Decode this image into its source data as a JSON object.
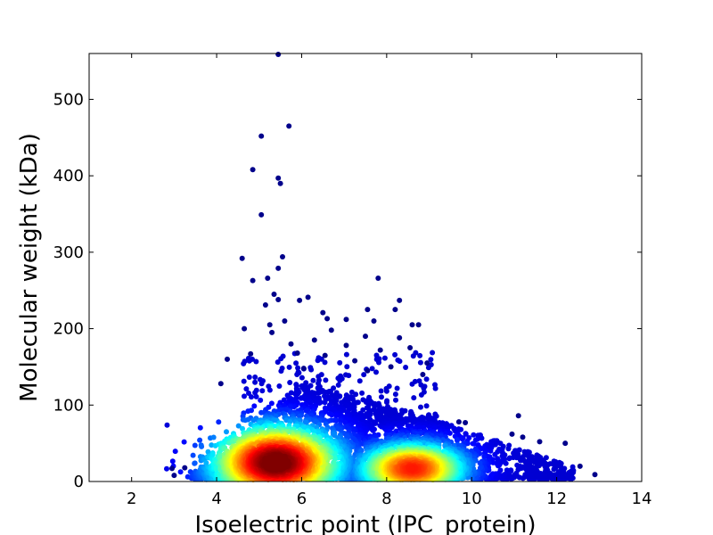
{
  "chart_data": {
    "type": "scatter",
    "title": "",
    "xlabel": "Isoelectric point (IPC_protein)",
    "ylabel": "Molecular weight (kDa)",
    "xlim": [
      1,
      14
    ],
    "ylim": [
      0,
      560
    ],
    "x_ticks": [
      2,
      4,
      6,
      8,
      10,
      12,
      14
    ],
    "y_ticks": [
      0,
      100,
      200,
      300,
      400,
      500
    ],
    "x_tick_labels": [
      "2",
      "4",
      "6",
      "8",
      "10",
      "12",
      "14"
    ],
    "y_tick_labels": [
      "0",
      "100",
      "200",
      "300",
      "400",
      "500"
    ],
    "grid": false,
    "legend": "none",
    "colormap": "jet (point density)",
    "point_color": "#00008b",
    "density_clusters": [
      {
        "x_center": 5.4,
        "y_center": 25,
        "x_spread": 0.6,
        "y_spread": 14,
        "peak_color": "#b30000"
      },
      {
        "x_center": 8.6,
        "y_center": 17,
        "x_spread": 0.5,
        "y_spread": 9,
        "peak_color": "#b30000"
      }
    ],
    "outliers": [
      {
        "x": 5.45,
        "y": 560
      },
      {
        "x": 5.7,
        "y": 465
      },
      {
        "x": 5.05,
        "y": 452
      },
      {
        "x": 4.85,
        "y": 408
      },
      {
        "x": 5.45,
        "y": 397
      },
      {
        "x": 5.5,
        "y": 390
      },
      {
        "x": 5.05,
        "y": 349
      },
      {
        "x": 5.55,
        "y": 294
      },
      {
        "x": 4.6,
        "y": 292
      },
      {
        "x": 5.45,
        "y": 279
      },
      {
        "x": 5.2,
        "y": 266
      },
      {
        "x": 7.8,
        "y": 266
      },
      {
        "x": 4.85,
        "y": 263
      },
      {
        "x": 5.35,
        "y": 245
      },
      {
        "x": 6.15,
        "y": 241
      },
      {
        "x": 5.45,
        "y": 238
      },
      {
        "x": 5.95,
        "y": 237
      },
      {
        "x": 8.3,
        "y": 237
      },
      {
        "x": 5.15,
        "y": 231
      },
      {
        "x": 7.55,
        "y": 225
      },
      {
        "x": 8.2,
        "y": 225
      },
      {
        "x": 6.5,
        "y": 221
      },
      {
        "x": 6.6,
        "y": 213
      },
      {
        "x": 7.05,
        "y": 212
      },
      {
        "x": 5.6,
        "y": 210
      },
      {
        "x": 7.7,
        "y": 210
      },
      {
        "x": 8.6,
        "y": 205
      },
      {
        "x": 8.75,
        "y": 205
      },
      {
        "x": 5.25,
        "y": 205
      },
      {
        "x": 4.65,
        "y": 200
      },
      {
        "x": 6.7,
        "y": 198
      },
      {
        "x": 5.3,
        "y": 195
      },
      {
        "x": 7.5,
        "y": 190
      },
      {
        "x": 8.3,
        "y": 188
      },
      {
        "x": 6.3,
        "y": 185
      },
      {
        "x": 5.75,
        "y": 180
      },
      {
        "x": 7.05,
        "y": 178
      },
      {
        "x": 8.55,
        "y": 175
      },
      {
        "x": 7.85,
        "y": 172
      },
      {
        "x": 5.9,
        "y": 168
      },
      {
        "x": 4.8,
        "y": 167
      },
      {
        "x": 6.55,
        "y": 165
      },
      {
        "x": 4.25,
        "y": 160
      },
      {
        "x": 7.25,
        "y": 158
      },
      {
        "x": 8.95,
        "y": 155
      },
      {
        "x": 8.1,
        "y": 150
      },
      {
        "x": 6.05,
        "y": 148
      },
      {
        "x": 7.55,
        "y": 145
      },
      {
        "x": 8.85,
        "y": 140
      },
      {
        "x": 4.1,
        "y": 128
      },
      {
        "x": 9.7,
        "y": 78
      },
      {
        "x": 9.85,
        "y": 77
      },
      {
        "x": 11.1,
        "y": 86
      },
      {
        "x": 10.95,
        "y": 62
      },
      {
        "x": 11.2,
        "y": 58
      },
      {
        "x": 11.6,
        "y": 52
      },
      {
        "x": 12.2,
        "y": 50
      },
      {
        "x": 12.55,
        "y": 20
      },
      {
        "x": 12.9,
        "y": 9
      },
      {
        "x": 2.95,
        "y": 17
      },
      {
        "x": 3.25,
        "y": 18
      },
      {
        "x": 3.0,
        "y": 8
      }
    ]
  }
}
